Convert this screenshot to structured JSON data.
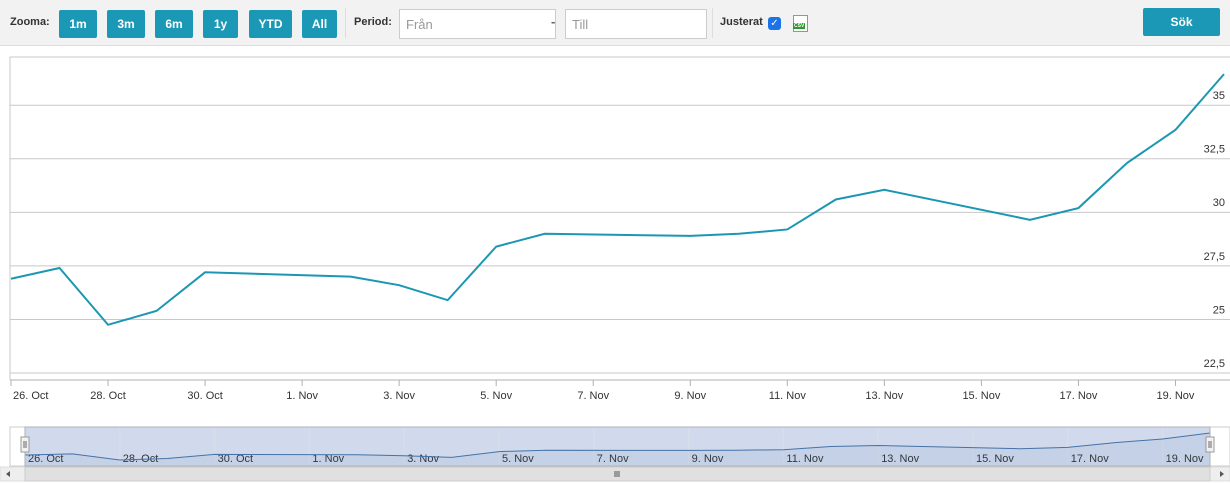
{
  "toolbar": {
    "zoom_label": "Zooma:",
    "zoom_buttons": [
      "1m",
      "3m",
      "6m",
      "1y",
      "YTD",
      "All"
    ],
    "period_label": "Period:",
    "from_placeholder": "Från",
    "separator": "-",
    "to_placeholder": "Till",
    "adjusted_label": "Justerat",
    "csv_icon": "CSV",
    "search_button": "Sök"
  },
  "chart_data": {
    "type": "line",
    "x": [
      "10-26",
      "10-27",
      "10-28",
      "10-29",
      "10-30",
      "11-02",
      "11-03",
      "11-04",
      "11-05",
      "11-06",
      "11-09",
      "11-10",
      "11-11",
      "11-12",
      "11-13",
      "11-16",
      "11-17",
      "11-18",
      "11-19",
      "11-20"
    ],
    "series": [
      {
        "color": "#1c97b3",
        "values": [
          26.9,
          27.4,
          24.75,
          25.4,
          27.2,
          27.0,
          26.6,
          25.9,
          28.4,
          29.0,
          28.9,
          29.0,
          29.2,
          30.6,
          31.05,
          29.65,
          30.2,
          32.3,
          33.85,
          36.45
        ]
      }
    ],
    "xlim": [
      "10-26",
      "11-20"
    ],
    "xticks": [
      {
        "value": "10-26",
        "label": "26. Oct"
      },
      {
        "value": "10-28",
        "label": "28. Oct"
      },
      {
        "value": "10-30",
        "label": "30. Oct"
      },
      {
        "value": "11-01",
        "label": "1. Nov"
      },
      {
        "value": "11-03",
        "label": "3. Nov"
      },
      {
        "value": "11-05",
        "label": "5. Nov"
      },
      {
        "value": "11-07",
        "label": "7. Nov"
      },
      {
        "value": "11-09",
        "label": "9. Nov"
      },
      {
        "value": "11-11",
        "label": "11. Nov"
      },
      {
        "value": "11-13",
        "label": "13. Nov"
      },
      {
        "value": "11-15",
        "label": "15. Nov"
      },
      {
        "value": "11-17",
        "label": "17. Nov"
      },
      {
        "value": "11-19",
        "label": "19. Nov"
      }
    ],
    "ylim": [
      22.5,
      37.25
    ],
    "yticks": [
      {
        "value": 22.5,
        "label": "22,5"
      },
      25,
      {
        "value": 27.5,
        "label": "27,5"
      },
      30,
      {
        "value": 32.5,
        "label": "32,5"
      },
      35
    ],
    "grid": true
  }
}
